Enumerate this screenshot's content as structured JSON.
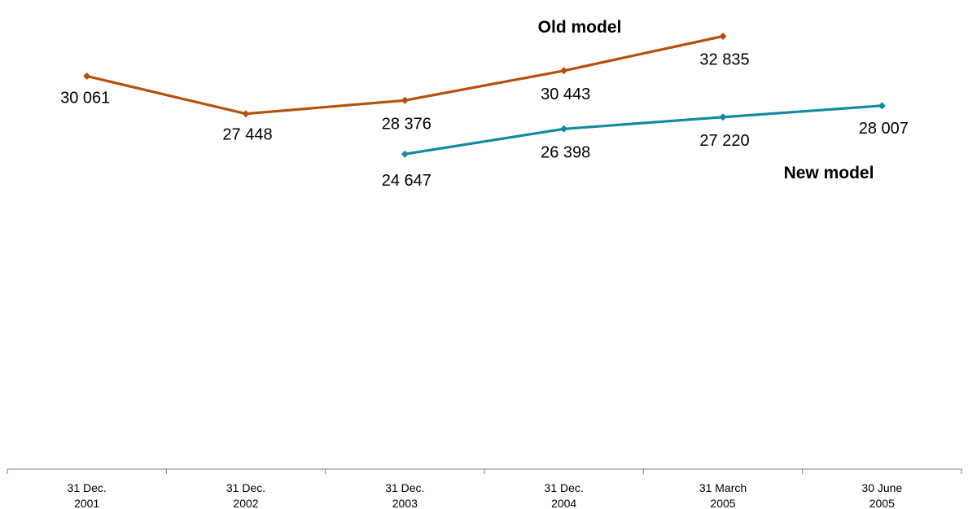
{
  "chart_data": {
    "type": "line",
    "title": "",
    "xlabel": "",
    "ylabel": "",
    "categories": [
      [
        "31 Dec.",
        "2001"
      ],
      [
        "31 Dec.",
        "2002"
      ],
      [
        "31 Dec.",
        "2003"
      ],
      [
        "31 Dec.",
        "2004"
      ],
      [
        "31 March",
        "2005"
      ],
      [
        "30 June",
        "2005"
      ]
    ],
    "ylim": [
      20000,
      33500
    ],
    "grid": false,
    "legend": "none",
    "series": [
      {
        "name": "Old model",
        "color": "#B5500D",
        "values": [
          30061,
          27448,
          28376,
          30443,
          32835,
          null
        ],
        "labels": [
          "30 061",
          "27 448",
          "28 376",
          "30 443",
          "32 835",
          null
        ]
      },
      {
        "name": "New model",
        "color": "#138A9E",
        "values": [
          null,
          null,
          24647,
          26398,
          27220,
          28007
        ],
        "labels": [
          null,
          null,
          "24 647",
          "26 398",
          "27 220",
          "28 007"
        ]
      }
    ]
  }
}
